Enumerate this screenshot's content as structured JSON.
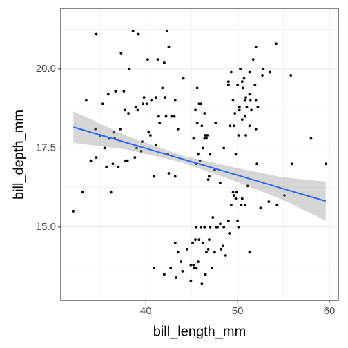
{
  "chart_data": {
    "type": "scatter",
    "xlabel": "bill_length_mm",
    "ylabel": "bill_depth_mm",
    "xlim": [
      30.725,
      60.975
    ],
    "ylim": [
      12.68,
      21.92
    ],
    "xticks": [
      40,
      50,
      60
    ],
    "yticks": [
      {
        "value": 15,
        "label": "15.0"
      },
      {
        "value": 17.5,
        "label": "17.5"
      },
      {
        "value": 20,
        "label": "20.0"
      }
    ],
    "x_minor_ticks": [
      35,
      45,
      55
    ],
    "y_minor_ticks": [
      13.75,
      16.25,
      18.75,
      21.25
    ],
    "grid": true,
    "color": "#000000",
    "x": [
      32.1,
      33.1,
      33.5,
      34.6,
      34.0,
      34.5,
      35.0,
      34.6,
      35.3,
      35.9,
      35.5,
      35.7,
      36.0,
      36.4,
      36.2,
      36.6,
      36.7,
      37.0,
      37.3,
      37.7,
      37.8,
      37.2,
      38.1,
      38.6,
      38.2,
      38.8,
      38.9,
      39.2,
      39.5,
      39.1,
      39.7,
      39.6,
      40.2,
      40.3,
      40.6,
      40.9,
      41.1,
      41.4,
      41.5,
      41.1,
      42.0,
      42.2,
      42.3,
      42.5,
      42.8,
      41.8,
      43.2,
      43.1,
      44.1,
      45.8,
      39.0,
      40.1,
      38.0,
      37.6,
      36.5,
      39.8,
      40.5,
      41.3,
      42.1,
      43.5,
      40.9,
      42.0,
      42.7,
      43.2,
      43.3,
      43.5,
      43.8,
      44.0,
      44.5,
      44.9,
      45.1,
      45.2,
      45.4,
      45.5,
      45.7,
      45.8,
      46.1,
      46.2,
      46.4,
      46.5,
      46.8,
      47.0,
      47.2,
      47.3,
      47.5,
      47.8,
      48.1,
      48.4,
      48.7,
      49.0,
      49.1,
      49.3,
      49.5,
      49.8,
      50.0,
      50.4,
      50.5,
      50.8,
      51.1,
      51.3,
      52.1,
      52.5,
      53.4,
      54.3,
      55.1,
      55.9,
      59.6,
      45.5,
      46.9,
      48.5,
      49.6,
      50.1,
      44.9,
      46.6,
      48.2,
      47.7,
      45.3,
      46.0,
      49.9,
      46.5,
      50.0,
      51.3,
      45.4,
      52.7,
      45.2,
      46.1,
      51.3,
      46.0,
      51.3,
      46.6,
      51.7,
      47.0,
      52.0,
      45.9,
      50.5,
      50.3,
      58.0,
      46.4,
      49.2,
      42.4,
      48.5,
      43.2,
      50.6,
      46.7,
      52.0,
      50.5,
      49.5,
      46.4,
      52.8,
      54.2,
      42.5,
      51.0,
      49.7,
      47.5,
      47.6,
      52.0,
      46.9,
      53.5,
      49.0,
      46.2,
      50.9,
      45.5,
      50.9,
      50.8,
      50.1,
      49.0,
      51.5,
      49.8,
      48.1,
      51.4,
      45.7,
      50.7,
      52.2,
      45.6,
      49.3,
      50.2,
      45.6,
      51.9,
      46.8,
      55.8,
      49.6,
      50.8,
      50.2
    ],
    "values": [
      15.5,
      16.1,
      19.0,
      21.1,
      17.1,
      18.1,
      17.9,
      17.2,
      18.9,
      19.2,
      17.5,
      16.9,
      17.8,
      17.0,
      16.1,
      17.8,
      19.3,
      16.9,
      20.5,
      18.7,
      17.1,
      18.1,
      18.6,
      21.2,
      20.0,
      17.2,
      18.8,
      21.1,
      17.4,
      18.7,
      18.9,
      17.7,
      20.3,
      18.0,
      19.0,
      16.6,
      17.6,
      18.5,
      18.3,
      19.1,
      20.2,
      18.5,
      21.2,
      20.7,
      18.5,
      19.4,
      19.0,
      18.5,
      19.7,
      18.9,
      17.5,
      18.9,
      17.1,
      19.3,
      18.0,
      19.1,
      17.9,
      20.3,
      19.1,
      18.1,
      13.7,
      13.5,
      13.7,
      14.5,
      13.4,
      14.2,
      13.9,
      13.6,
      14.3,
      13.3,
      14.5,
      13.8,
      14.6,
      13.7,
      13.9,
      14.6,
      13.2,
      14.5,
      15.0,
      13.5,
      14.3,
      15.0,
      13.7,
      15.3,
      14.2,
      15.0,
      15.1,
      14.4,
      14.1,
      15.2,
      14.8,
      15.7,
      16.1,
      15.9,
      15.2,
      15.7,
      15.9,
      15.7,
      16.3,
      14.2,
      17.0,
      15.6,
      15.8,
      15.7,
      16.0,
      17.0,
      17.0,
      15.0,
      14.6,
      15.0,
      16.0,
      15.0,
      13.8,
      14.2,
      14.3,
      15.0,
      13.7,
      15.0,
      16.1,
      17.9,
      19.5,
      19.2,
      18.7,
      19.8,
      17.8,
      18.2,
      18.2,
      18.9,
      19.9,
      17.8,
      20.3,
      17.3,
      18.1,
      17.1,
      19.6,
      20.0,
      17.8,
      18.6,
      18.2,
      17.3,
      17.5,
      16.6,
      19.4,
      17.9,
      19.0,
      18.4,
      19.0,
      17.8,
      20.0,
      20.8,
      16.7,
      18.8,
      18.6,
      16.8,
      18.3,
      20.7,
      16.6,
      19.9,
      19.5,
      17.5,
      19.1,
      17.0,
      17.9,
      18.5,
      17.9,
      19.6,
      18.7,
      17.3,
      16.4,
      19.0,
      17.3,
      19.7,
      18.8,
      19.4,
      19.9,
      18.8,
      18.3,
      19.5,
      16.5,
      19.8,
      18.2,
      19.0,
      18.7
    ],
    "fit": {
      "x": [
        32.1,
        38,
        44,
        50,
        55,
        59.6
      ],
      "values": [
        18.16,
        17.66,
        17.15,
        16.64,
        16.21,
        15.82
      ],
      "lower": [
        17.66,
        17.45,
        17.04,
        16.42,
        15.85,
        15.2
      ],
      "upper": [
        18.66,
        17.87,
        17.26,
        16.86,
        16.57,
        16.44
      ],
      "color": "#3366ff",
      "fill": "#999999"
    }
  }
}
